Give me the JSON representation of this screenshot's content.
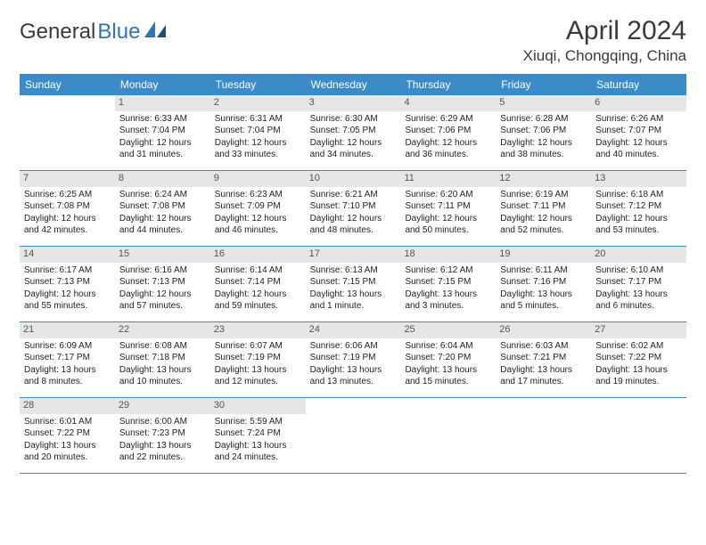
{
  "brand": {
    "part1": "General",
    "part2": "Blue"
  },
  "title": "April 2024",
  "location": "Xiuqi, Chongqing, China",
  "colors": {
    "header_bg": "#3b8bc9",
    "header_text": "#ffffff",
    "daynum_bg": "#e6e6e6",
    "daynum_text": "#555555",
    "border": "#3b8bc9",
    "title_text": "#3a3a3a",
    "brand_blue": "#2e75b6"
  },
  "fonts": {
    "title_size": 30,
    "location_size": 17,
    "header_size": 12,
    "body_size": 10,
    "daynum_size": 11
  },
  "day_names": [
    "Sunday",
    "Monday",
    "Tuesday",
    "Wednesday",
    "Thursday",
    "Friday",
    "Saturday"
  ],
  "weeks": [
    [
      {
        "n": "",
        "empty": true
      },
      {
        "n": "1",
        "rise": "Sunrise: 6:33 AM",
        "set": "Sunset: 7:04 PM",
        "d1": "Daylight: 12 hours",
        "d2": "and 31 minutes."
      },
      {
        "n": "2",
        "rise": "Sunrise: 6:31 AM",
        "set": "Sunset: 7:04 PM",
        "d1": "Daylight: 12 hours",
        "d2": "and 33 minutes."
      },
      {
        "n": "3",
        "rise": "Sunrise: 6:30 AM",
        "set": "Sunset: 7:05 PM",
        "d1": "Daylight: 12 hours",
        "d2": "and 34 minutes."
      },
      {
        "n": "4",
        "rise": "Sunrise: 6:29 AM",
        "set": "Sunset: 7:06 PM",
        "d1": "Daylight: 12 hours",
        "d2": "and 36 minutes."
      },
      {
        "n": "5",
        "rise": "Sunrise: 6:28 AM",
        "set": "Sunset: 7:06 PM",
        "d1": "Daylight: 12 hours",
        "d2": "and 38 minutes."
      },
      {
        "n": "6",
        "rise": "Sunrise: 6:26 AM",
        "set": "Sunset: 7:07 PM",
        "d1": "Daylight: 12 hours",
        "d2": "and 40 minutes."
      }
    ],
    [
      {
        "n": "7",
        "rise": "Sunrise: 6:25 AM",
        "set": "Sunset: 7:08 PM",
        "d1": "Daylight: 12 hours",
        "d2": "and 42 minutes."
      },
      {
        "n": "8",
        "rise": "Sunrise: 6:24 AM",
        "set": "Sunset: 7:08 PM",
        "d1": "Daylight: 12 hours",
        "d2": "and 44 minutes."
      },
      {
        "n": "9",
        "rise": "Sunrise: 6:23 AM",
        "set": "Sunset: 7:09 PM",
        "d1": "Daylight: 12 hours",
        "d2": "and 46 minutes."
      },
      {
        "n": "10",
        "rise": "Sunrise: 6:21 AM",
        "set": "Sunset: 7:10 PM",
        "d1": "Daylight: 12 hours",
        "d2": "and 48 minutes."
      },
      {
        "n": "11",
        "rise": "Sunrise: 6:20 AM",
        "set": "Sunset: 7:11 PM",
        "d1": "Daylight: 12 hours",
        "d2": "and 50 minutes."
      },
      {
        "n": "12",
        "rise": "Sunrise: 6:19 AM",
        "set": "Sunset: 7:11 PM",
        "d1": "Daylight: 12 hours",
        "d2": "and 52 minutes."
      },
      {
        "n": "13",
        "rise": "Sunrise: 6:18 AM",
        "set": "Sunset: 7:12 PM",
        "d1": "Daylight: 12 hours",
        "d2": "and 53 minutes."
      }
    ],
    [
      {
        "n": "14",
        "rise": "Sunrise: 6:17 AM",
        "set": "Sunset: 7:13 PM",
        "d1": "Daylight: 12 hours",
        "d2": "and 55 minutes."
      },
      {
        "n": "15",
        "rise": "Sunrise: 6:16 AM",
        "set": "Sunset: 7:13 PM",
        "d1": "Daylight: 12 hours",
        "d2": "and 57 minutes."
      },
      {
        "n": "16",
        "rise": "Sunrise: 6:14 AM",
        "set": "Sunset: 7:14 PM",
        "d1": "Daylight: 12 hours",
        "d2": "and 59 minutes."
      },
      {
        "n": "17",
        "rise": "Sunrise: 6:13 AM",
        "set": "Sunset: 7:15 PM",
        "d1": "Daylight: 13 hours",
        "d2": "and 1 minute."
      },
      {
        "n": "18",
        "rise": "Sunrise: 6:12 AM",
        "set": "Sunset: 7:15 PM",
        "d1": "Daylight: 13 hours",
        "d2": "and 3 minutes."
      },
      {
        "n": "19",
        "rise": "Sunrise: 6:11 AM",
        "set": "Sunset: 7:16 PM",
        "d1": "Daylight: 13 hours",
        "d2": "and 5 minutes."
      },
      {
        "n": "20",
        "rise": "Sunrise: 6:10 AM",
        "set": "Sunset: 7:17 PM",
        "d1": "Daylight: 13 hours",
        "d2": "and 6 minutes."
      }
    ],
    [
      {
        "n": "21",
        "rise": "Sunrise: 6:09 AM",
        "set": "Sunset: 7:17 PM",
        "d1": "Daylight: 13 hours",
        "d2": "and 8 minutes."
      },
      {
        "n": "22",
        "rise": "Sunrise: 6:08 AM",
        "set": "Sunset: 7:18 PM",
        "d1": "Daylight: 13 hours",
        "d2": "and 10 minutes."
      },
      {
        "n": "23",
        "rise": "Sunrise: 6:07 AM",
        "set": "Sunset: 7:19 PM",
        "d1": "Daylight: 13 hours",
        "d2": "and 12 minutes."
      },
      {
        "n": "24",
        "rise": "Sunrise: 6:06 AM",
        "set": "Sunset: 7:19 PM",
        "d1": "Daylight: 13 hours",
        "d2": "and 13 minutes."
      },
      {
        "n": "25",
        "rise": "Sunrise: 6:04 AM",
        "set": "Sunset: 7:20 PM",
        "d1": "Daylight: 13 hours",
        "d2": "and 15 minutes."
      },
      {
        "n": "26",
        "rise": "Sunrise: 6:03 AM",
        "set": "Sunset: 7:21 PM",
        "d1": "Daylight: 13 hours",
        "d2": "and 17 minutes."
      },
      {
        "n": "27",
        "rise": "Sunrise: 6:02 AM",
        "set": "Sunset: 7:22 PM",
        "d1": "Daylight: 13 hours",
        "d2": "and 19 minutes."
      }
    ],
    [
      {
        "n": "28",
        "rise": "Sunrise: 6:01 AM",
        "set": "Sunset: 7:22 PM",
        "d1": "Daylight: 13 hours",
        "d2": "and 20 minutes."
      },
      {
        "n": "29",
        "rise": "Sunrise: 6:00 AM",
        "set": "Sunset: 7:23 PM",
        "d1": "Daylight: 13 hours",
        "d2": "and 22 minutes."
      },
      {
        "n": "30",
        "rise": "Sunrise: 5:59 AM",
        "set": "Sunset: 7:24 PM",
        "d1": "Daylight: 13 hours",
        "d2": "and 24 minutes."
      },
      {
        "n": "",
        "empty": true
      },
      {
        "n": "",
        "empty": true
      },
      {
        "n": "",
        "empty": true
      },
      {
        "n": "",
        "empty": true
      }
    ]
  ]
}
